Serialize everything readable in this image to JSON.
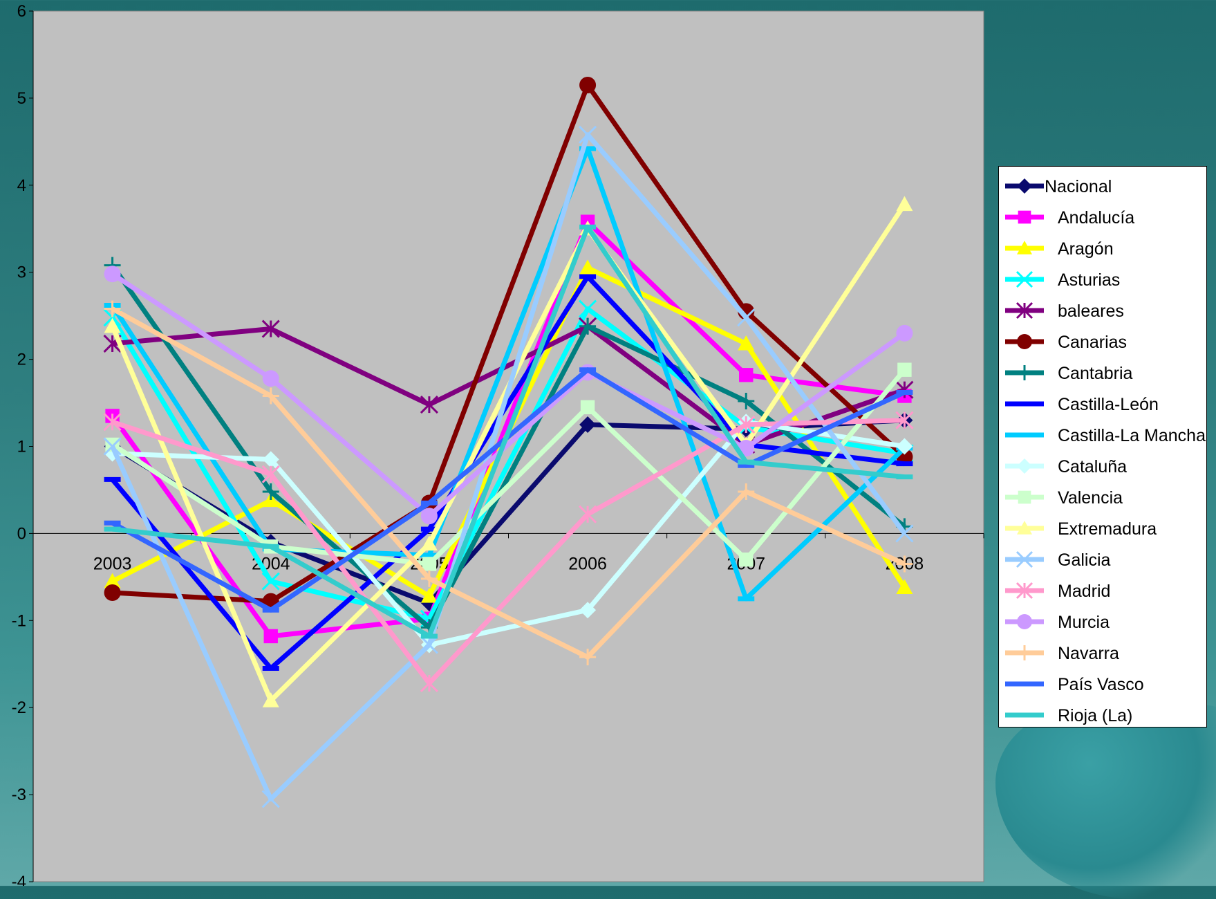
{
  "chart_data": {
    "type": "line",
    "title": "",
    "xlabel": "",
    "ylabel": "",
    "categories": [
      "2003",
      "2004",
      "2005",
      "2006",
      "2007",
      "2008"
    ],
    "yticks": [
      "-4",
      "-3",
      "-2",
      "-1",
      "0",
      "1",
      "2",
      "3",
      "4",
      "5",
      "6"
    ],
    "ylim": [
      -4,
      6
    ],
    "grid": false,
    "legend_position": "right",
    "plot_background": "#c0c0c0",
    "series": [
      {
        "name": "Nacional",
        "color": "#0a0a6e",
        "marker": "diamond",
        "values": [
          1.0,
          -0.1,
          -0.8,
          1.25,
          1.2,
          1.3
        ]
      },
      {
        "name": "Andalucía",
        "color": "#ff00ff",
        "marker": "square",
        "values": [
          1.35,
          -1.18,
          -0.98,
          3.58,
          1.82,
          1.58
        ]
      },
      {
        "name": "Aragón",
        "color": "#ffff00",
        "marker": "triangle",
        "values": [
          -0.55,
          0.38,
          -0.72,
          3.05,
          2.18,
          -0.62
        ]
      },
      {
        "name": "Asturias",
        "color": "#00ffff",
        "marker": "x",
        "values": [
          2.48,
          -0.55,
          -0.98,
          2.58,
          1.22,
          0.92
        ]
      },
      {
        "name": "baleares",
        "color": "#800080",
        "marker": "star",
        "values": [
          2.18,
          2.35,
          1.48,
          2.38,
          1.02,
          1.65
        ]
      },
      {
        "name": "Canarias",
        "color": "#800000",
        "marker": "circle",
        "values": [
          -0.68,
          -0.78,
          0.35,
          5.15,
          2.55,
          0.88
        ]
      },
      {
        "name": "Cantabria",
        "color": "#008080",
        "marker": "plus",
        "values": [
          3.08,
          0.48,
          -1.08,
          2.38,
          1.52,
          0.08
        ]
      },
      {
        "name": "Castilla-León",
        "color": "#0000ff",
        "marker": "dash",
        "values": [
          0.62,
          -1.55,
          0.05,
          2.95,
          1.02,
          0.8
        ]
      },
      {
        "name": "Castilla-La Mancha",
        "color": "#00ccff",
        "marker": "dash",
        "values": [
          2.62,
          -0.18,
          -0.25,
          4.42,
          -0.75,
          0.98
        ]
      },
      {
        "name": "Cataluña",
        "color": "#ccffff",
        "marker": "diamond",
        "values": [
          0.92,
          0.85,
          -1.28,
          -0.88,
          1.28,
          1.0
        ]
      },
      {
        "name": "Valencia",
        "color": "#ccffcc",
        "marker": "square",
        "values": [
          1.02,
          -0.15,
          -0.35,
          1.45,
          -0.3,
          1.88
        ]
      },
      {
        "name": "Extremadura",
        "color": "#ffff99",
        "marker": "triangle",
        "values": [
          2.38,
          -1.92,
          -0.12,
          3.5,
          1.02,
          3.78
        ]
      },
      {
        "name": "Galicia",
        "color": "#99ccff",
        "marker": "x",
        "values": [
          1.0,
          -3.05,
          -1.28,
          4.58,
          2.48,
          0.0
        ]
      },
      {
        "name": "Madrid",
        "color": "#ff99cc",
        "marker": "star",
        "values": [
          1.28,
          0.68,
          -1.72,
          0.22,
          1.25,
          1.3
        ]
      },
      {
        "name": "Murcia",
        "color": "#cc99ff",
        "marker": "circle",
        "values": [
          2.98,
          1.78,
          0.2,
          1.85,
          0.98,
          2.3
        ]
      },
      {
        "name": "Navarra",
        "color": "#ffcc99",
        "marker": "plus",
        "values": [
          2.58,
          1.58,
          -0.52,
          -1.42,
          0.48,
          -0.35
        ]
      },
      {
        "name": "País Vasco",
        "color": "#3366ff",
        "marker": "dash",
        "values": [
          0.12,
          -0.88,
          0.35,
          1.88,
          0.78,
          1.62
        ]
      },
      {
        "name": "Rioja (La)",
        "color": "#33cccc",
        "marker": "dash",
        "values": [
          0.05,
          -0.15,
          -1.18,
          3.52,
          0.82,
          0.65
        ]
      }
    ]
  }
}
